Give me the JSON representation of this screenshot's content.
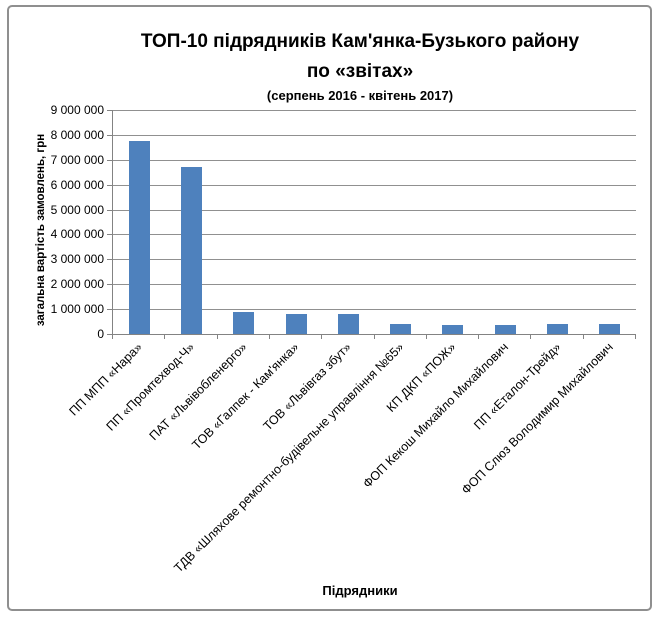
{
  "chart_data": {
    "type": "bar",
    "title": "ТОП-10 підрядників Кам'янка-Бузького району по «звітах»",
    "title_line1": "ТОП-10 підрядників Кам'янка-Бузького району",
    "title_line2": "по «звітах»",
    "subtitle": "(серпень 2016 - квітень 2017)",
    "ylabel": "загальна вартість замовлень, грн",
    "xlabel": "Підрядники",
    "ylim": [
      0,
      9000000
    ],
    "ytick_step": 1000000,
    "ytick_labels": [
      "0",
      "1 000 000",
      "2 000 000",
      "3 000 000",
      "4 000 000",
      "5 000 000",
      "6 000 000",
      "7 000 000",
      "8 000 000",
      "9 000 000"
    ],
    "grid": true,
    "legend": "none",
    "categories": [
      "ПП МПП «Нара»",
      "ПП «Промтехвод-Ч»",
      "ПАТ «Львівобленерго»",
      "ТОВ «Галпек - Кам'янка»",
      "ТОВ «Львівгаз збут»",
      "ТДВ «Шляхове ремонтно-будівельне управління №65»",
      "КП ДКП «ПОЖ»",
      "ФОП Кекош Михайло Михайлович",
      "ПП «Еталон-Трейд»",
      "ФОП Слюз Володимир Михайлович"
    ],
    "values": [
      7750000,
      6700000,
      900000,
      800000,
      800000,
      420000,
      360000,
      380000,
      390000,
      400000
    ],
    "colors": {
      "bar": "#4e81bd",
      "gridline": "#909090",
      "axis": "#838383",
      "text": "#000000",
      "frame_border": "#8f8f8f"
    }
  }
}
